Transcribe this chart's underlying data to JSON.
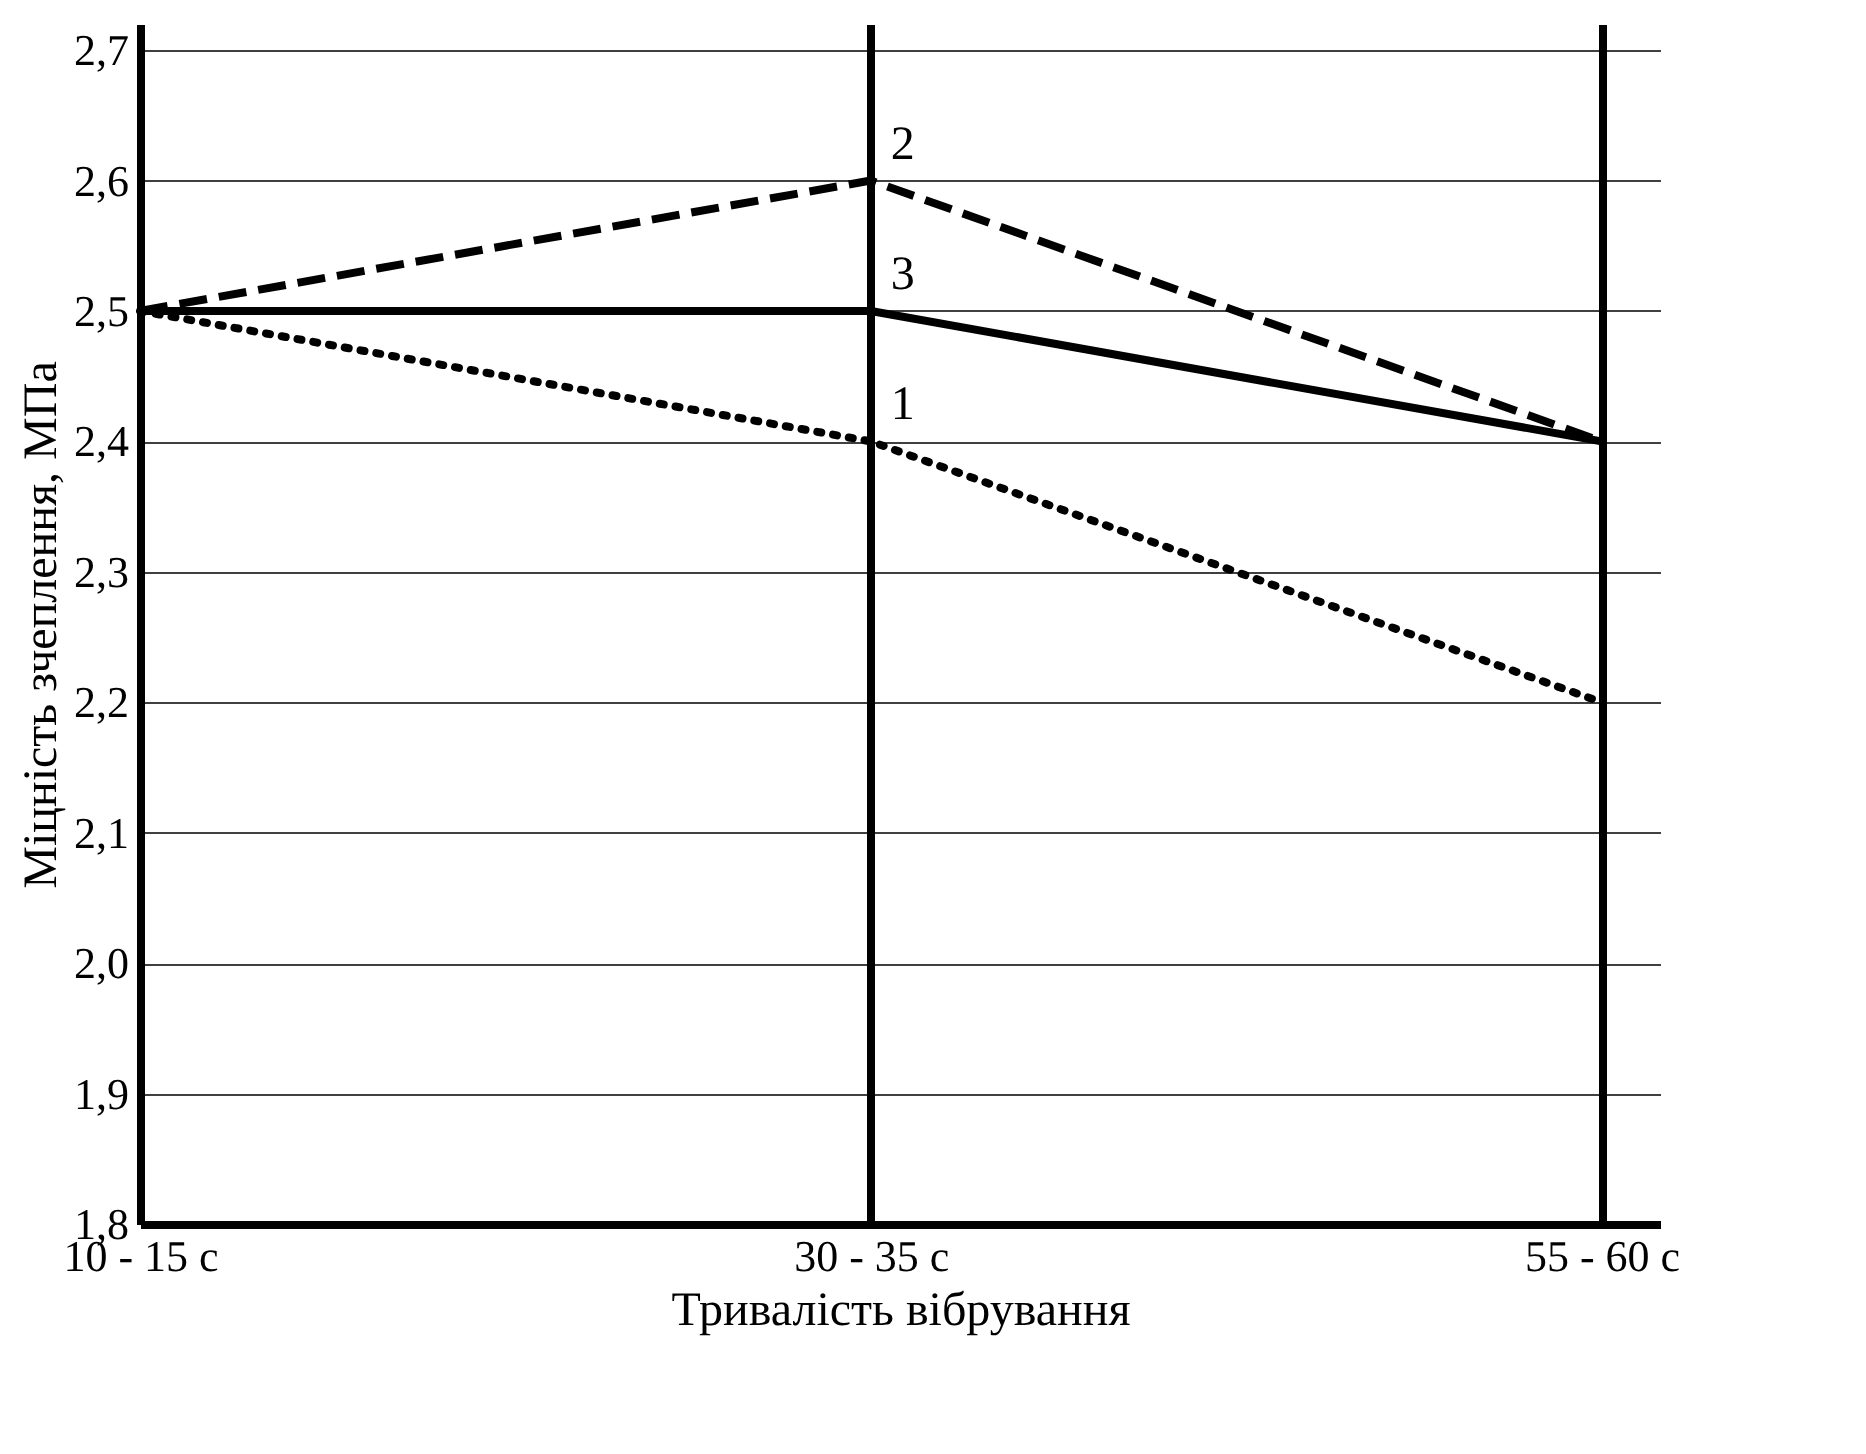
{
  "chart_data": {
    "type": "line",
    "xlabel": "Тривалість вібрування",
    "ylabel": "Міцність зчеплення, МПа",
    "categories": [
      "10 - 15 с",
      "30 - 35 с",
      "55 - 60 с"
    ],
    "series": [
      {
        "name": "1",
        "color": "#000000",
        "line_style": "dotted",
        "values": [
          2.5,
          2.4,
          2.2
        ]
      },
      {
        "name": "2",
        "color": "#000000",
        "line_style": "dashed",
        "values": [
          2.5,
          2.6,
          2.4
        ]
      },
      {
        "name": "3",
        "color": "#000000",
        "line_style": "solid",
        "values": [
          2.5,
          2.5,
          2.4
        ]
      }
    ],
    "ylim": [
      1.8,
      2.72
    ],
    "yticks": [
      {
        "value": 1.8,
        "label": "1,8"
      },
      {
        "value": 1.9,
        "label": "1,9"
      },
      {
        "value": 2.0,
        "label": "2,0"
      },
      {
        "value": 2.1,
        "label": "2,1"
      },
      {
        "value": 2.2,
        "label": "2,2"
      },
      {
        "value": 2.3,
        "label": "2,3"
      },
      {
        "value": 2.4,
        "label": "2,4"
      },
      {
        "value": 2.5,
        "label": "2,5"
      },
      {
        "value": 2.6,
        "label": "2,6"
      },
      {
        "value": 2.7,
        "label": "2,7"
      }
    ],
    "grid": true,
    "marker": "none"
  }
}
